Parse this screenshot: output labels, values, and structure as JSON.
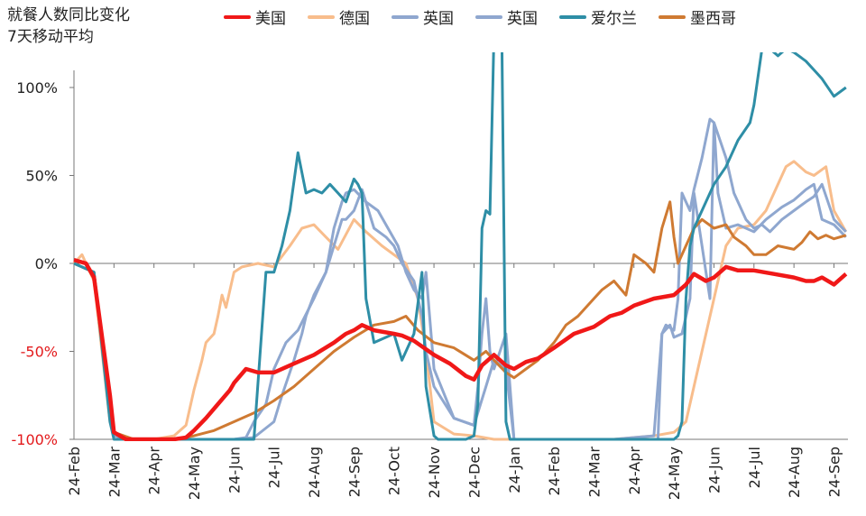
{
  "chart_data": {
    "type": "line",
    "title": "就餐人数同比变化",
    "subtitle": "7天移动平均",
    "x_tick_labels": [
      "24-Feb",
      "24-Mar",
      "24-Apr",
      "24-May",
      "24-Jun",
      "24-Jul",
      "24-Aug",
      "24-Sep",
      "24-Oct",
      "24-Nov",
      "24-Dec",
      "24-Jan",
      "24-Feb",
      "24-Mar",
      "24-Apr",
      "24-May",
      "24-Jun",
      "24-Jul",
      "24-Aug",
      "24-Sep"
    ],
    "y_ticks": [
      100,
      50,
      0,
      -50,
      -100
    ],
    "y_tick_labels": [
      "100%",
      "50%",
      "0%",
      "-50%",
      "-100%"
    ],
    "y_tick_colors": [
      "#222222",
      "#222222",
      "#222222",
      "#e31a1c",
      "#e31a1c"
    ],
    "ylim": [
      -100,
      125
    ],
    "xlim": [
      0,
      19.35
    ],
    "legend_position": "top",
    "series": [
      {
        "name": "美国",
        "color": "#f01818",
        "width": 4.5,
        "x": [
          0,
          0.3,
          0.5,
          0.9,
          1.0,
          1.3,
          1.5,
          2.0,
          2.5,
          2.8,
          3.0,
          3.3,
          3.6,
          3.9,
          4.0,
          4.3,
          4.6,
          5.0,
          5.5,
          6.0,
          6.5,
          6.8,
          7.0,
          7.2,
          7.5,
          8.0,
          8.2,
          8.5,
          9.0,
          9.4,
          9.8,
          10.0,
          10.2,
          10.5,
          10.8,
          11.0,
          11.3,
          11.6,
          12.0,
          12.5,
          13.0,
          13.4,
          13.7,
          14.0,
          14.5,
          15.0,
          15.3,
          15.5,
          15.8,
          16.0,
          16.3,
          16.6,
          17.0,
          17.5,
          18.0,
          18.3,
          18.5,
          18.7,
          19.0,
          19.3
        ],
        "y": [
          2,
          0,
          -8,
          -75,
          -96,
          -100,
          -100,
          -100,
          -100,
          -99,
          -95,
          -88,
          -80,
          -72,
          -68,
          -60,
          -62,
          -62,
          -57,
          -52,
          -45,
          -40,
          -38,
          -35,
          -38,
          -40,
          -41,
          -44,
          -52,
          -57,
          -64,
          -66,
          -58,
          -52,
          -58,
          -60,
          -56,
          -54,
          -48,
          -40,
          -36,
          -30,
          -28,
          -24,
          -20,
          -18,
          -12,
          -6,
          -10,
          -8,
          -2,
          -4,
          -4,
          -6,
          -8,
          -10,
          -10,
          -8,
          -12,
          -6
        ]
      },
      {
        "name": "德国",
        "color": "#f8bd8c",
        "width": 3,
        "x": [
          0,
          0.2,
          0.5,
          0.9,
          1.0,
          1.5,
          2.0,
          2.5,
          2.8,
          3.0,
          3.2,
          3.3,
          3.5,
          3.6,
          3.7,
          3.8,
          4.0,
          4.2,
          4.6,
          5.0,
          5.4,
          5.7,
          6.0,
          6.3,
          6.6,
          7.0,
          7.3,
          7.7,
          8.0,
          8.3,
          8.6,
          8.8,
          9.0,
          9.5,
          10.0,
          10.5,
          11.0,
          11.5,
          12.0,
          12.5,
          13.0,
          13.5,
          14.0,
          14.5,
          15.0,
          15.3,
          15.6,
          16.0,
          16.3,
          16.6,
          17.0,
          17.3,
          17.5,
          17.8,
          18.0,
          18.3,
          18.5,
          18.8,
          19.0,
          19.3
        ],
        "y": [
          0,
          5,
          -10,
          -90,
          -98,
          -100,
          -100,
          -98,
          -92,
          -72,
          -55,
          -45,
          -40,
          -30,
          -18,
          -25,
          -5,
          -2,
          0,
          -2,
          10,
          20,
          22,
          15,
          8,
          25,
          18,
          10,
          5,
          0,
          -20,
          -50,
          -90,
          -97,
          -98,
          -100,
          -100,
          -100,
          -100,
          -100,
          -100,
          -100,
          -99,
          -98,
          -96,
          -90,
          -60,
          -20,
          10,
          20,
          22,
          30,
          40,
          55,
          58,
          52,
          50,
          55,
          30,
          18
        ]
      },
      {
        "name": "英国",
        "color": "#8fa7cf",
        "width": 3,
        "x": [
          0,
          0.5,
          0.9,
          1.0,
          1.5,
          2.0,
          2.5,
          3.0,
          3.5,
          4.0,
          4.5,
          5.0,
          5.2,
          5.5,
          5.7,
          5.8,
          6.0,
          6.3,
          6.5,
          6.7,
          6.8,
          7.0,
          7.3,
          7.6,
          7.9,
          8.1,
          8.3,
          8.5,
          8.7,
          8.8,
          9.0,
          9.5,
          10.0,
          10.1,
          10.2,
          10.3,
          10.4,
          10.5,
          10.8,
          11.0,
          11.5,
          12.0,
          12.5,
          13.0,
          13.5,
          14.0,
          14.5,
          14.7,
          14.9,
          15.0,
          15.2,
          15.4,
          15.5,
          15.7,
          15.9,
          16.0,
          16.3,
          16.5,
          16.8,
          17.0,
          17.2,
          17.4,
          17.7,
          18.0,
          18.3,
          18.5,
          18.7,
          19.0,
          19.3
        ],
        "y": [
          0,
          -5,
          -85,
          -98,
          -100,
          -100,
          -100,
          -100,
          -100,
          -100,
          -99,
          -90,
          -75,
          -55,
          -40,
          -30,
          -18,
          -5,
          20,
          35,
          40,
          42,
          35,
          30,
          18,
          10,
          -5,
          -15,
          -20,
          -5,
          -60,
          -88,
          -92,
          -70,
          -40,
          -20,
          -50,
          -60,
          -40,
          -100,
          -100,
          -100,
          -100,
          -100,
          -100,
          -99,
          -98,
          -40,
          -35,
          -42,
          -40,
          -20,
          40,
          10,
          -20,
          80,
          60,
          40,
          25,
          20,
          22,
          18,
          25,
          30,
          35,
          38,
          45,
          25,
          18
        ]
      },
      {
        "name": "英国",
        "color": "#8fa7cf",
        "width": 3,
        "x": [
          0,
          0.5,
          0.9,
          1.0,
          1.5,
          2.0,
          2.5,
          3.0,
          3.5,
          4.0,
          4.3,
          4.5,
          4.8,
          5.0,
          5.3,
          5.6,
          6.0,
          6.3,
          6.5,
          6.7,
          6.8,
          7.0,
          7.2,
          7.5,
          7.8,
          8.0,
          8.2,
          8.5,
          8.7,
          8.8,
          9.0,
          9.5,
          10.0,
          10.3,
          10.5,
          10.8,
          11.0,
          11.5,
          12.0,
          12.5,
          13.0,
          13.5,
          14.0,
          14.5,
          14.6,
          14.7,
          14.8,
          15.0,
          15.1,
          15.2,
          15.3,
          15.4,
          15.5,
          15.7,
          15.9,
          16.0,
          16.1,
          16.3,
          16.6,
          17.0,
          17.3,
          17.7,
          18.0,
          18.3,
          18.5,
          18.7,
          19.0,
          19.3
        ],
        "y": [
          0,
          -5,
          -85,
          -98,
          -100,
          -100,
          -100,
          -100,
          -100,
          -100,
          -99,
          -90,
          -80,
          -60,
          -45,
          -38,
          -20,
          -5,
          10,
          25,
          25,
          30,
          42,
          20,
          15,
          10,
          0,
          -10,
          -30,
          -50,
          -70,
          -88,
          -92,
          -70,
          -55,
          -60,
          -100,
          -100,
          -100,
          -100,
          -100,
          -100,
          -100,
          -100,
          -100,
          -40,
          -35,
          -38,
          -20,
          40,
          35,
          30,
          42,
          60,
          82,
          80,
          40,
          20,
          22,
          18,
          25,
          32,
          36,
          42,
          45,
          25,
          22,
          15
        ]
      },
      {
        "name": "爱尔兰",
        "color": "#2e8ea6",
        "width": 3,
        "x": [
          0,
          0.5,
          0.9,
          1.0,
          1.5,
          2.0,
          2.5,
          3.0,
          3.5,
          4.0,
          4.2,
          4.3,
          4.4,
          4.5,
          4.8,
          5.0,
          5.2,
          5.4,
          5.6,
          5.8,
          6.0,
          6.2,
          6.4,
          6.6,
          6.8,
          7.0,
          7.1,
          7.2,
          7.3,
          7.5,
          7.8,
          8.0,
          8.2,
          8.5,
          8.7,
          8.8,
          9.0,
          9.1,
          9.3,
          9.5,
          9.8,
          10.0,
          10.1,
          10.2,
          10.3,
          10.4,
          10.5,
          10.6,
          10.7,
          10.8,
          10.9,
          11.0,
          11.5,
          12.0,
          12.5,
          13.0,
          13.5,
          14.0,
          14.5,
          15.0,
          15.1,
          15.2,
          15.3,
          15.4,
          15.5,
          15.6,
          15.8,
          16.0,
          16.3,
          16.6,
          16.9,
          17.0,
          17.2,
          17.4,
          17.6,
          17.8,
          18.0,
          18.3,
          18.5,
          18.7,
          19.0,
          19.3
        ],
        "y": [
          0,
          -5,
          -90,
          -100,
          -100,
          -100,
          -100,
          -100,
          -100,
          -100,
          -100,
          -100,
          -100,
          -100,
          -5,
          -5,
          10,
          30,
          63,
          40,
          42,
          40,
          45,
          40,
          35,
          48,
          45,
          40,
          -20,
          -45,
          -42,
          -40,
          -55,
          -40,
          -5,
          -70,
          -98,
          -100,
          -100,
          -100,
          -100,
          -98,
          -80,
          20,
          30,
          28,
          130,
          130,
          125,
          -90,
          -100,
          -100,
          -100,
          -100,
          -100,
          -100,
          -100,
          -100,
          -100,
          -100,
          -98,
          -90,
          -20,
          10,
          20,
          25,
          35,
          45,
          55,
          70,
          80,
          90,
          122,
          122,
          118,
          122,
          120,
          115,
          110,
          105,
          95,
          100
        ]
      },
      {
        "name": "墨西哥",
        "color": "#cf7a32",
        "width": 3,
        "x": [
          0,
          0.5,
          0.9,
          1.0,
          1.5,
          2.0,
          2.5,
          3.0,
          3.5,
          4.0,
          4.5,
          5.0,
          5.5,
          6.0,
          6.5,
          7.0,
          7.5,
          8.0,
          8.3,
          8.6,
          9.0,
          9.5,
          10.0,
          10.3,
          10.5,
          10.8,
          11.0,
          11.3,
          11.6,
          12.0,
          12.3,
          12.6,
          13.0,
          13.2,
          13.5,
          13.8,
          14.0,
          14.3,
          14.5,
          14.7,
          14.9,
          15.0,
          15.1,
          15.3,
          15.5,
          15.7,
          16.0,
          16.3,
          16.5,
          16.8,
          17.0,
          17.3,
          17.6,
          18.0,
          18.2,
          18.4,
          18.6,
          18.8,
          19.0,
          19.3
        ],
        "y": [
          0,
          -5,
          -80,
          -96,
          -100,
          -100,
          -100,
          -98,
          -95,
          -90,
          -85,
          -78,
          -70,
          -60,
          -50,
          -42,
          -35,
          -33,
          -30,
          -38,
          -45,
          -48,
          -55,
          -50,
          -55,
          -62,
          -65,
          -60,
          -55,
          -45,
          -35,
          -30,
          -20,
          -15,
          -10,
          -18,
          5,
          0,
          -5,
          20,
          35,
          15,
          0,
          10,
          20,
          25,
          20,
          22,
          15,
          10,
          5,
          5,
          10,
          8,
          12,
          18,
          14,
          16,
          14,
          16
        ]
      }
    ]
  }
}
